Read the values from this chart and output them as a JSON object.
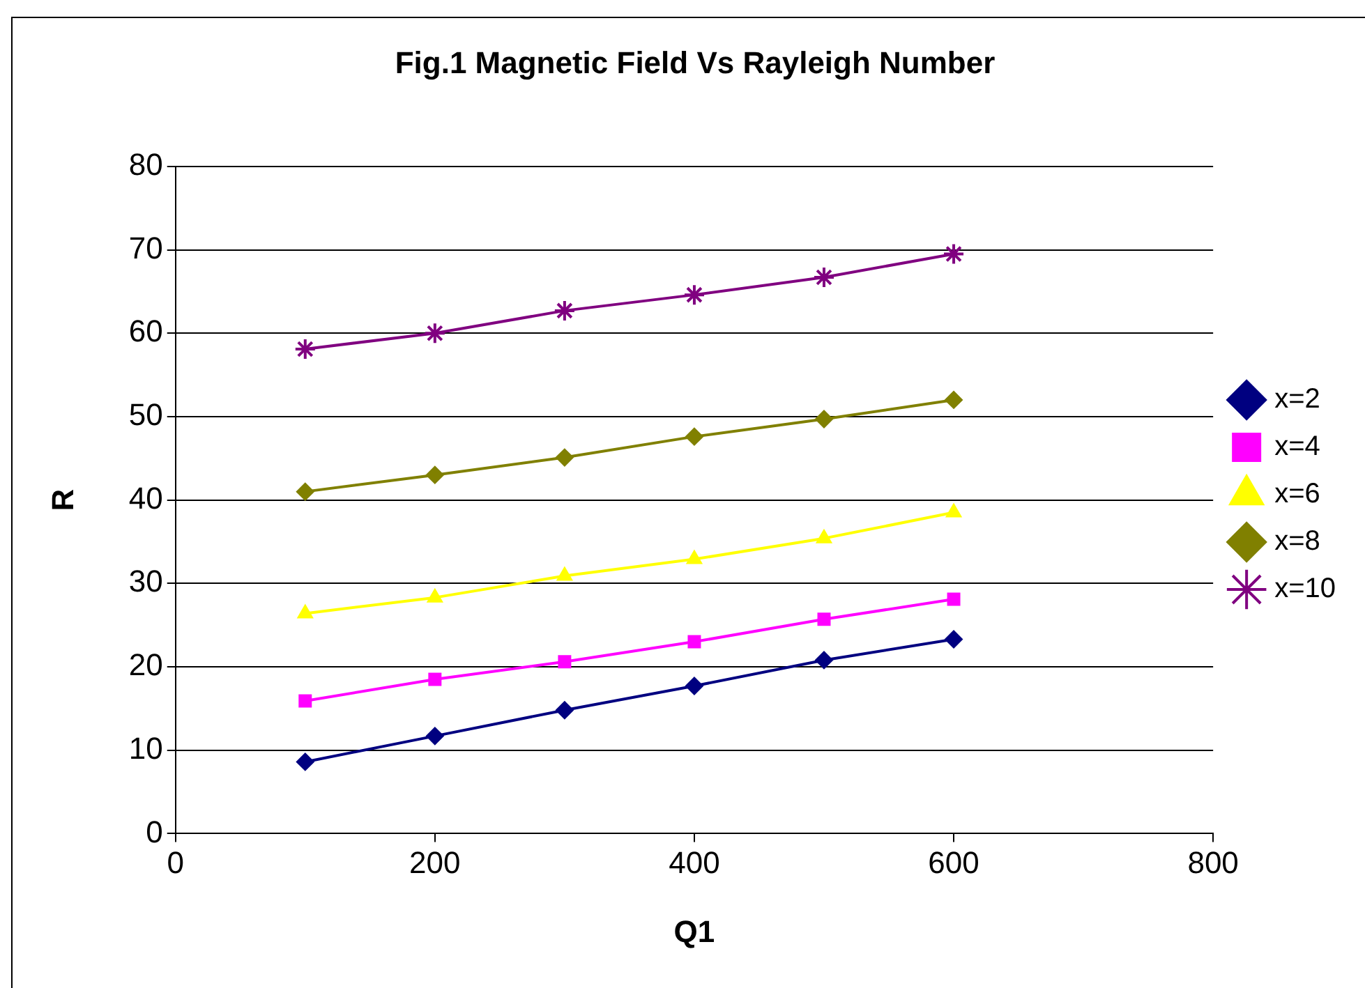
{
  "chart_data": {
    "type": "line",
    "title": "Fig.1 Magnetic Field Vs Rayleigh Number",
    "xlabel": "Q1",
    "ylabel": "R",
    "x": [
      100,
      200,
      300,
      400,
      500,
      600
    ],
    "xlim": [
      0,
      800
    ],
    "xticks": [
      0,
      200,
      400,
      600,
      800
    ],
    "ylim": [
      0,
      80
    ],
    "yticks": [
      0,
      10,
      20,
      30,
      40,
      50,
      60,
      70,
      80
    ],
    "grid": "y",
    "legend": "right",
    "line_style": "solid",
    "series": [
      {
        "name": "x=2",
        "color": "#000080",
        "marker": "diamond",
        "values": [
          8.6,
          11.7,
          14.8,
          17.7,
          20.8,
          23.3
        ]
      },
      {
        "name": "x=4",
        "color": "#ff00ff",
        "marker": "square",
        "values": [
          15.9,
          18.5,
          20.6,
          23.0,
          25.7,
          28.1
        ]
      },
      {
        "name": "x=6",
        "color": "#ffff00",
        "marker": "triangle",
        "values": [
          26.4,
          28.3,
          30.9,
          32.9,
          35.4,
          38.5
        ]
      },
      {
        "name": "x=8",
        "color": "#808000",
        "marker": "diamond",
        "values": [
          41.0,
          43.0,
          45.1,
          47.6,
          49.7,
          52.0
        ]
      },
      {
        "name": "x=10",
        "color": "#800080",
        "marker": "cross",
        "values": [
          58.1,
          60.0,
          62.7,
          64.6,
          66.7,
          69.5
        ]
      }
    ]
  }
}
